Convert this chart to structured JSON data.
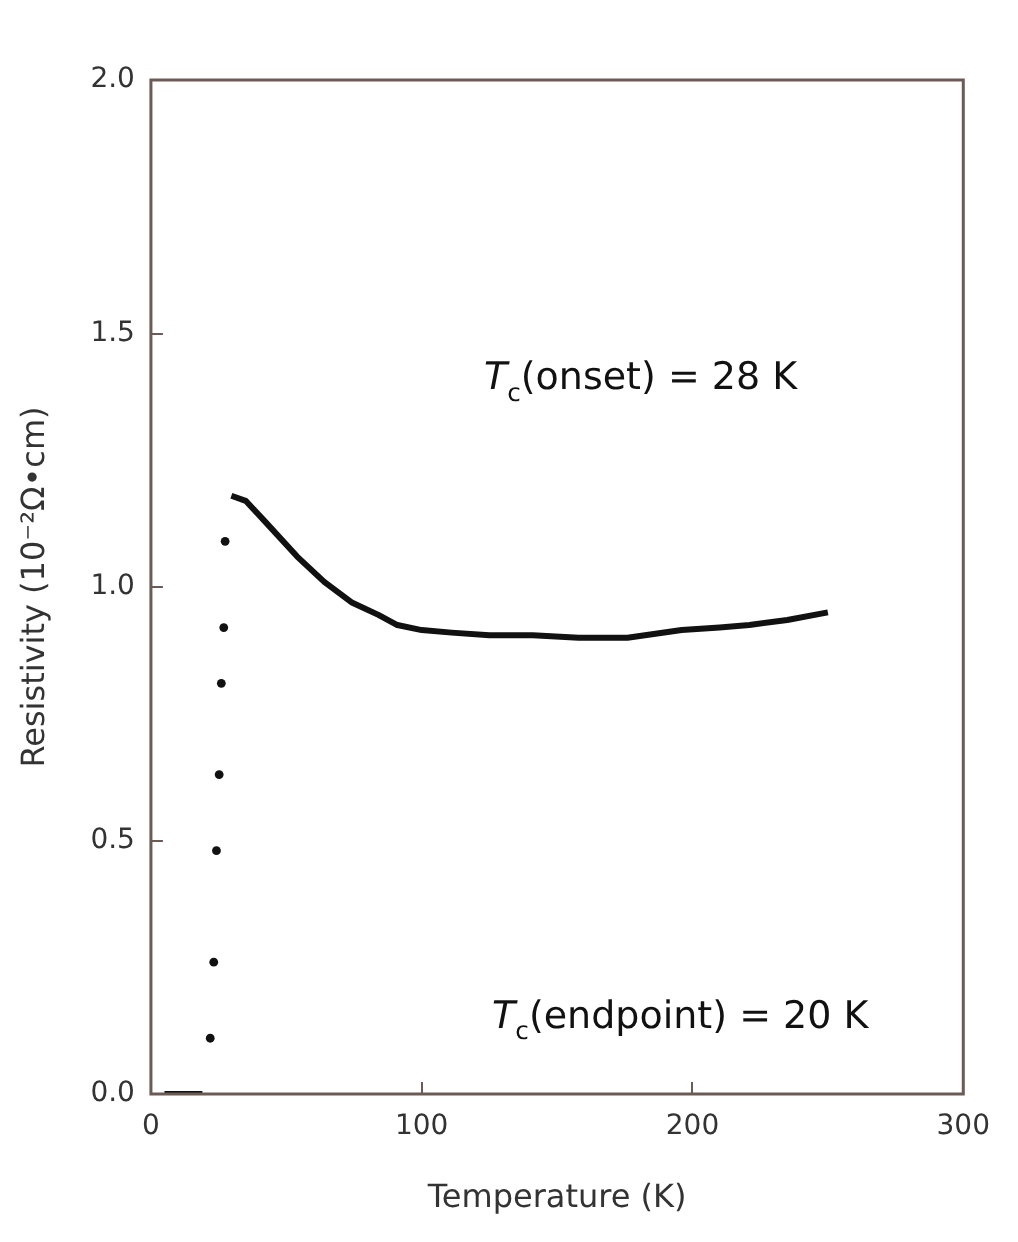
{
  "chart_data": {
    "type": "scatter",
    "xlabel": "Temperature (K)",
    "ylabel": "Resistivity (10⁻²Ω•cm)",
    "xlim": [
      0,
      300
    ],
    "xticks": [
      0,
      100,
      200,
      300
    ],
    "ylim": [
      0,
      2
    ],
    "yticks": [
      {
        "value": 0,
        "label": "0.0"
      },
      {
        "value": 0.5,
        "label": "0.5"
      },
      {
        "value": 1,
        "label": "1.0"
      },
      {
        "value": 1.5,
        "label": "1.5"
      },
      {
        "value": 2,
        "label": "2.0"
      }
    ],
    "grid": false,
    "legend": false,
    "annotations": [
      "T$_{c}$(onset) = 28 K",
      "T$_{c}$(endpoint) = 20 K"
    ],
    "series": [
      {
        "type": "scatter",
        "marker": "circle",
        "color": "#111111",
        "x": [
          21.9,
          23.2,
          24.2,
          25.2,
          26,
          26.9,
          27.4
        ],
        "values": [
          0.11,
          0.26,
          0.48,
          0.63,
          0.81,
          0.92,
          1.09
        ]
      },
      {
        "type": "line",
        "marker": "none",
        "color": "#111111",
        "x": [
          5,
          10,
          15,
          19
        ],
        "values": [
          0,
          0,
          0,
          0
        ]
      },
      {
        "type": "line",
        "marker": "none",
        "color": "#111111",
        "x": [
          29.7,
          35,
          42,
          54,
          64,
          74,
          84,
          91,
          100,
          111,
          125,
          141,
          158,
          176,
          196,
          210,
          221,
          235,
          250
        ],
        "values": [
          1.18,
          1.17,
          1.13,
          1.06,
          1.01,
          0.97,
          0.945,
          0.925,
          0.915,
          0.91,
          0.905,
          0.905,
          0.9,
          0.9,
          0.915,
          0.92,
          0.925,
          0.935,
          0.95
        ]
      }
    ]
  }
}
